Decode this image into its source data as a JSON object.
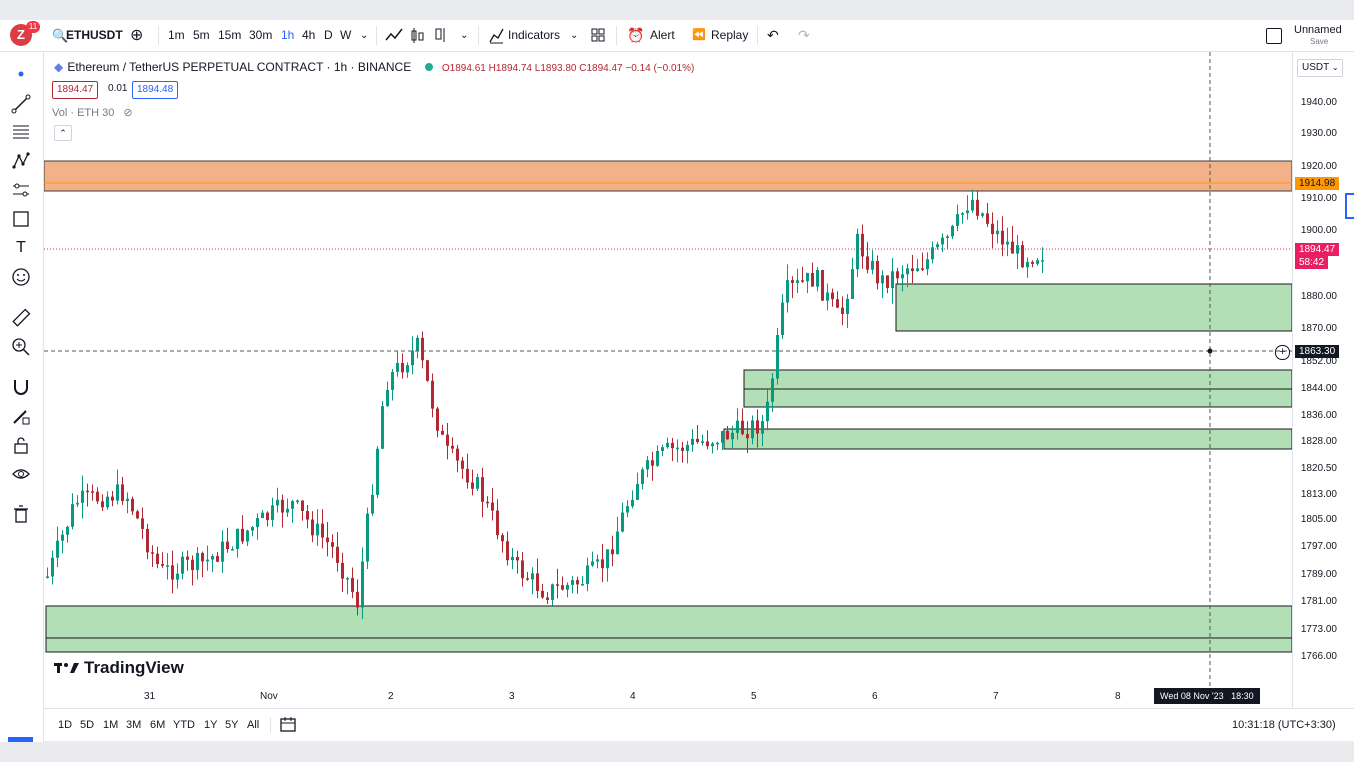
{
  "toolbar": {
    "notif_count": "11",
    "symbol": "ETHUSDT",
    "timeframes": [
      "1m",
      "5m",
      "15m",
      "30m",
      "1h",
      "4h",
      "D",
      "W"
    ],
    "indicators_label": "Indicators",
    "alert_label": "Alert",
    "replay_label": "Replay",
    "layout_name": "Unnamed",
    "layout_sub": "Save"
  },
  "legend": {
    "title": "Ethereum / TetherUS PERPETUAL CONTRACT · 1h · BINANCE",
    "ohlc": "O1894.61 H1894.74 L1893.80 C1894.47 −0.14 (−0.01%)",
    "bid": "1894.47",
    "spread": "0.01",
    "ask": "1894.48",
    "vol": "Vol · ETH 30"
  },
  "price_scale": {
    "currency": "USDT",
    "labels": [
      "1940.00",
      "1930.00",
      "1920.00",
      "1910.00",
      "1900.00",
      "1880.00",
      "1870.00",
      "1852.00",
      "1844.00",
      "1836.00",
      "1828.00",
      "1820.50",
      "1813.00",
      "1805.00",
      "1797.00",
      "1789.00",
      "1781.00",
      "1773.00",
      "1766.00"
    ],
    "tag_zone": "1914.98",
    "tag_last_price": "1894.47",
    "tag_countdown": "58:42",
    "tag_crosshair": "1863.30"
  },
  "time_axis": {
    "labels": [
      "31",
      "Nov",
      "2",
      "3",
      "4",
      "5",
      "6",
      "7",
      "8"
    ],
    "crosshair_time": "Wed 08 Nov '23   18:30"
  },
  "bottombar": {
    "ranges": [
      "1D",
      "5D",
      "1M",
      "3M",
      "6M",
      "YTD",
      "1Y",
      "5Y",
      "All"
    ],
    "clock": "10:31:18 (UTC+3:30)"
  },
  "watermark": "TradingView",
  "colors": {
    "up": "#089981",
    "down": "#b22833",
    "zone_green": "#b2dfb6",
    "zone_orange": "#f0a474",
    "last_price": "#e91e63"
  },
  "icons": [
    "cursor-icon",
    "trendline-icon",
    "fib-icon",
    "pattern-icon",
    "forecast-icon",
    "shapes-icon",
    "text-icon",
    "emoji-icon",
    "ruler-icon",
    "zoom-icon",
    "magnet-icon",
    "lock-drawings-icon",
    "lock-icon",
    "visibility-icon",
    "trash-icon"
  ]
}
